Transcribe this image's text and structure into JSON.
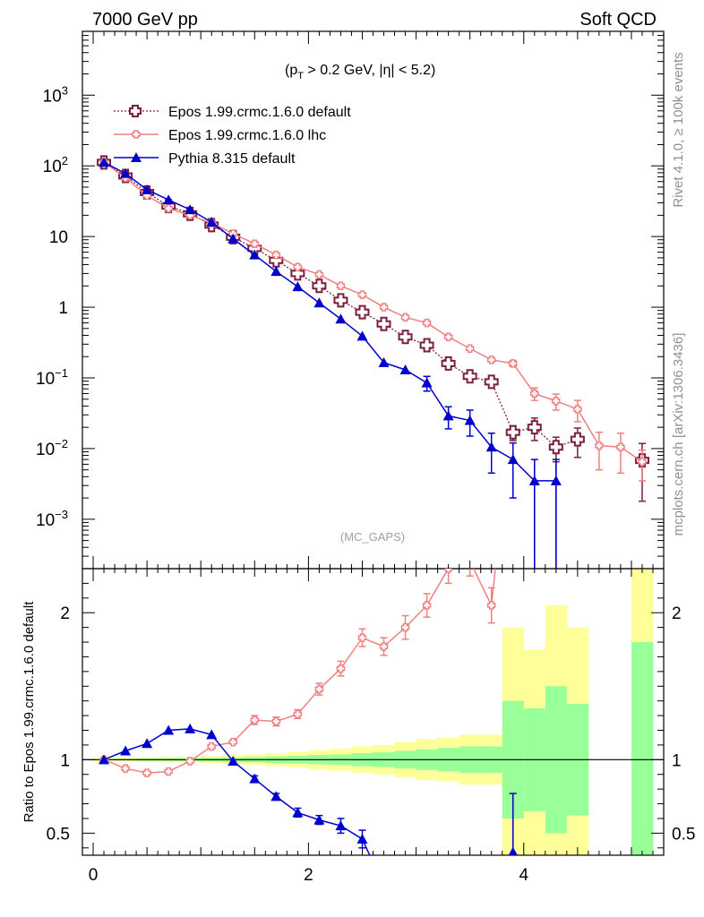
{
  "header": {
    "left": "7000 GeV pp",
    "right": "Soft QCD"
  },
  "annotations": {
    "cut_text": "(p",
    "cut_sub": "T",
    "cut_rest": " > 0.2 GeV, |η| < 5.2)",
    "watermark": "(MC_GAPS)",
    "side_top": "Rivet 4.1.0, ≥ 100k events",
    "side_bottom": "mcplots.cern.ch [arXiv:1306.3436]"
  },
  "ratio_ylabel": "Ratio to Epos 1.99.crmc.1.6.0 default",
  "colors": {
    "epos_default": "#7a1f3d",
    "epos_lhc": "#f08080",
    "pythia": "#0000cc",
    "band_inner": "#99ff99",
    "band_outer": "#ffff99"
  },
  "chart_data": [
    {
      "type": "line",
      "panel": "main",
      "yscale": "log",
      "xlim": [
        -0.1,
        5.3
      ],
      "ylim": [
        0.0002,
        8000
      ],
      "yticks": [
        {
          "value": 0.001,
          "base": "10",
          "exp": "−3"
        },
        {
          "value": 0.01,
          "base": "10",
          "exp": "−2"
        },
        {
          "value": 0.1,
          "base": "10",
          "exp": "−1"
        },
        {
          "value": 1,
          "base": "1",
          "exp": ""
        },
        {
          "value": 10,
          "base": "10",
          "exp": ""
        },
        {
          "value": 100,
          "base": "10",
          "exp": "2"
        },
        {
          "value": 1000,
          "base": "10",
          "exp": "3"
        }
      ],
      "series": [
        {
          "name": "Epos 1.99.crmc.1.6.0 default",
          "style": "dotted",
          "marker": "open-cross",
          "x": [
            0.1,
            0.3,
            0.5,
            0.7,
            0.9,
            1.1,
            1.3,
            1.5,
            1.7,
            1.9,
            2.1,
            2.3,
            2.5,
            2.7,
            2.9,
            3.1,
            3.3,
            3.5,
            3.7,
            3.9,
            4.1,
            4.3,
            4.5,
            4.7,
            4.9,
            5.1
          ],
          "y": [
            112,
            72,
            42,
            27,
            21,
            14.5,
            9.8,
            6.8,
            4.6,
            3.0,
            2.0,
            1.25,
            0.85,
            0.58,
            0.38,
            0.29,
            0.16,
            0.105,
            0.088,
            0.017,
            0.02,
            0.0105,
            0.0135,
            null,
            null,
            0.0068
          ],
          "err": [
            0,
            0,
            0,
            0,
            0,
            0,
            0,
            0,
            0,
            0,
            0,
            0,
            0,
            0,
            0,
            0,
            0,
            0,
            0,
            0.004,
            0.007,
            0.004,
            0.006,
            0,
            0,
            0.005
          ]
        },
        {
          "name": "Epos 1.99.crmc.1.6.0 lhc",
          "style": "solid",
          "marker": "open-cross-small",
          "x": [
            0.1,
            0.3,
            0.5,
            0.7,
            0.9,
            1.1,
            1.3,
            1.5,
            1.7,
            1.9,
            2.1,
            2.3,
            2.5,
            2.7,
            2.9,
            3.1,
            3.3,
            3.5,
            3.7,
            3.9,
            4.1,
            4.3,
            4.5,
            4.7,
            4.9,
            5.1
          ],
          "y": [
            112,
            68,
            38,
            25,
            20,
            15.5,
            11,
            7.9,
            5.5,
            3.7,
            2.9,
            2.0,
            1.5,
            1.0,
            0.72,
            0.6,
            0.38,
            0.26,
            0.18,
            0.16,
            0.06,
            0.047,
            0.036,
            0.011,
            0.0105,
            0.0065
          ],
          "err": [
            0,
            0,
            0,
            0,
            0,
            0,
            0,
            0,
            0,
            0,
            0,
            0,
            0,
            0,
            0,
            0,
            0,
            0,
            0,
            0.015,
            0.012,
            0.012,
            0.012,
            0.006,
            0.006,
            0.003
          ]
        },
        {
          "name": "Pythia 8.315 default",
          "style": "solid",
          "marker": "filled-triangle",
          "x": [
            0.1,
            0.3,
            0.5,
            0.7,
            0.9,
            1.1,
            1.3,
            1.5,
            1.7,
            1.9,
            2.1,
            2.3,
            2.5,
            2.7,
            2.9,
            3.1,
            3.3,
            3.5,
            3.7,
            3.9,
            4.1,
            4.3
          ],
          "y": [
            112,
            78,
            46,
            33,
            24,
            16,
            9.3,
            5.5,
            3.2,
            1.95,
            1.15,
            0.68,
            0.39,
            0.165,
            0.13,
            0.085,
            0.029,
            0.025,
            0.0105,
            0.007,
            0.0035,
            0.0035
          ],
          "err": [
            0,
            0,
            0,
            0,
            0,
            0,
            0,
            0,
            0,
            0,
            0,
            0,
            0,
            0,
            0,
            0.02,
            0.01,
            0.01,
            0.006,
            0.005,
            0.0035,
            0.0035
          ]
        }
      ]
    },
    {
      "type": "line",
      "panel": "ratio",
      "xlabel_ticks": [
        "0",
        "2",
        "4"
      ],
      "xlim": [
        -0.1,
        5.3
      ],
      "ylim": [
        0.35,
        2.3
      ],
      "yticks": [
        {
          "value": 0.5,
          "label": "0.5"
        },
        {
          "value": 1,
          "label": "1"
        },
        {
          "value": 2,
          "label": "2"
        }
      ],
      "bands": {
        "edges": [
          0.0,
          0.2,
          0.4,
          0.6,
          0.8,
          1.0,
          1.2,
          1.4,
          1.6,
          1.8,
          2.0,
          2.2,
          2.4,
          2.6,
          2.8,
          3.0,
          3.2,
          3.4,
          3.6,
          3.8,
          4.0,
          4.2,
          4.4,
          4.6,
          4.8,
          5.0,
          5.2
        ],
        "inner": [
          0.005,
          0.006,
          0.008,
          0.009,
          0.01,
          0.012,
          0.015,
          0.018,
          0.022,
          0.026,
          0.032,
          0.036,
          0.045,
          0.05,
          0.06,
          0.07,
          0.08,
          0.09,
          0.09,
          0.4,
          0.35,
          0.5,
          0.38,
          null,
          null,
          0.8
        ],
        "outer": [
          0.01,
          0.012,
          0.016,
          0.018,
          0.02,
          0.024,
          0.03,
          0.036,
          0.044,
          0.052,
          0.064,
          0.075,
          0.09,
          0.1,
          0.12,
          0.14,
          0.15,
          0.17,
          0.17,
          0.9,
          0.75,
          1.05,
          0.9,
          null,
          null,
          1.6
        ]
      },
      "series": [
        {
          "name": "Epos 1.99.crmc.1.6.0 lhc",
          "x": [
            0.1,
            0.3,
            0.5,
            0.7,
            0.9,
            1.1,
            1.3,
            1.5,
            1.7,
            1.9,
            2.1,
            2.3,
            2.5,
            2.7,
            2.9,
            3.1,
            3.3,
            3.5,
            3.7,
            3.75
          ],
          "y": [
            1.0,
            0.94,
            0.91,
            0.92,
            0.99,
            1.09,
            1.12,
            1.27,
            1.26,
            1.31,
            1.48,
            1.62,
            1.83,
            1.77,
            1.9,
            2.05,
            2.3,
            2.35,
            2.05,
            2.4
          ],
          "err": [
            0,
            0,
            0,
            0,
            0,
            0,
            0,
            0.03,
            0.03,
            0.03,
            0.04,
            0.05,
            0.06,
            0.06,
            0.08,
            0.08,
            0.1,
            0.1,
            0.12,
            0
          ]
        },
        {
          "name": "Pythia 8.315 default",
          "x": [
            0.1,
            0.3,
            0.5,
            0.7,
            0.9,
            1.1,
            1.3,
            1.5,
            1.7,
            1.9,
            2.1,
            2.3,
            2.5,
            2.6
          ],
          "y": [
            1.0,
            1.06,
            1.11,
            1.2,
            1.21,
            1.17,
            0.99,
            0.87,
            0.75,
            0.64,
            0.59,
            0.55,
            0.46,
            0.3
          ],
          "err": [
            0,
            0,
            0,
            0,
            0,
            0,
            0,
            0.02,
            0.02,
            0.03,
            0.03,
            0.05,
            0.06,
            0
          ],
          "extra_point": {
            "x": 3.9,
            "y": 0.37,
            "err_up": 0.4
          }
        }
      ]
    }
  ]
}
